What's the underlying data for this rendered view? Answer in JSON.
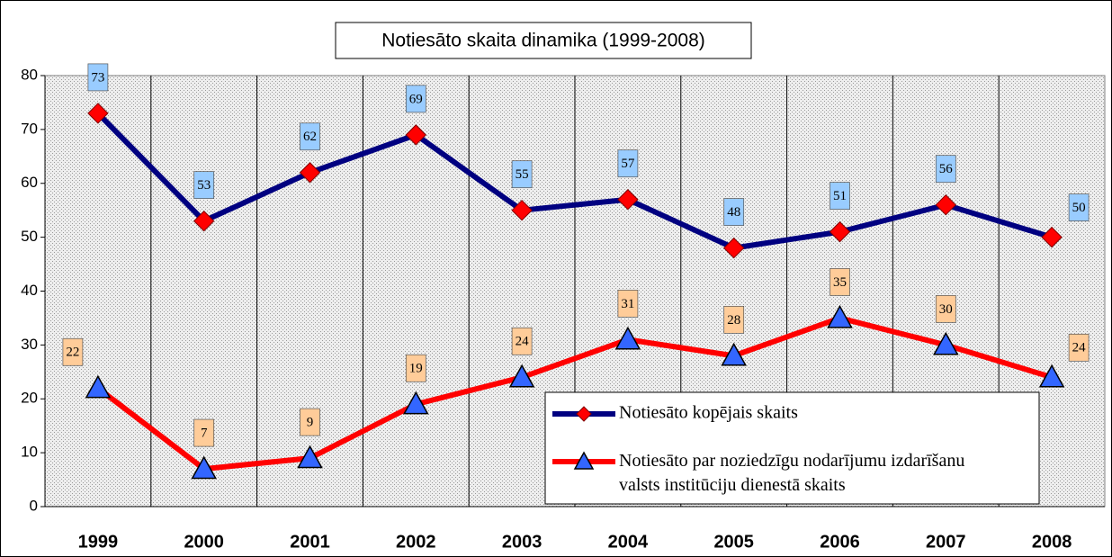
{
  "chart_data": {
    "type": "line",
    "title": "Notiesāto skaita dinamika (1999-2008)",
    "categories": [
      "1999",
      "2000",
      "2001",
      "2002",
      "2003",
      "2004",
      "2005",
      "2006",
      "2007",
      "2008"
    ],
    "series": [
      {
        "name": "Notiesāto kopējais skaits",
        "color": "#000080",
        "marker": "diamond",
        "marker_color": "#ff0000",
        "label_color": "#99ccff",
        "values": [
          73,
          53,
          62,
          69,
          55,
          57,
          48,
          51,
          56,
          50
        ]
      },
      {
        "name": "Notiesāto par noziedzīgu nodarījumu izdarīšanu valsts institūciju dienestā skaits",
        "color": "#ff0000",
        "marker": "triangle",
        "marker_color": "#3366ff",
        "label_color": "#ffcc99",
        "values": [
          22,
          7,
          9,
          19,
          24,
          31,
          28,
          35,
          30,
          24
        ]
      }
    ],
    "ylim": [
      0,
      80
    ],
    "yticks": [
      0,
      10,
      20,
      30,
      40,
      50,
      60,
      70,
      80
    ],
    "legend": "lower right"
  }
}
